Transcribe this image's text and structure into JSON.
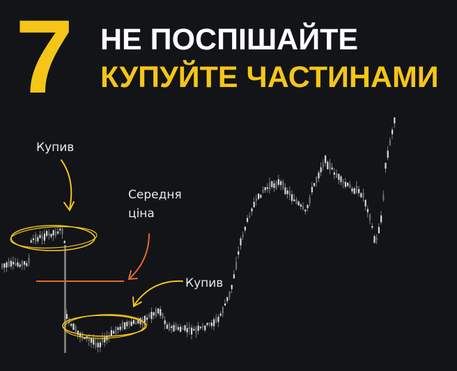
{
  "heading": {
    "number": "7",
    "line1": "НЕ ПОСПІШАЙТЕ",
    "line2": "КУПУЙТЕ ЧАСТИНАМИ"
  },
  "annotations": {
    "bought_first": "Купив",
    "average_line1": "Середня",
    "average_line2": "ціна",
    "bought_second": "Купив"
  },
  "colors": {
    "background": "#121418",
    "accent": "#f5c518",
    "average_line": "#e8692a",
    "candles": "#d9d9d9"
  },
  "icons": [
    "curved-arrow-icon",
    "orange-arrow-icon"
  ]
}
